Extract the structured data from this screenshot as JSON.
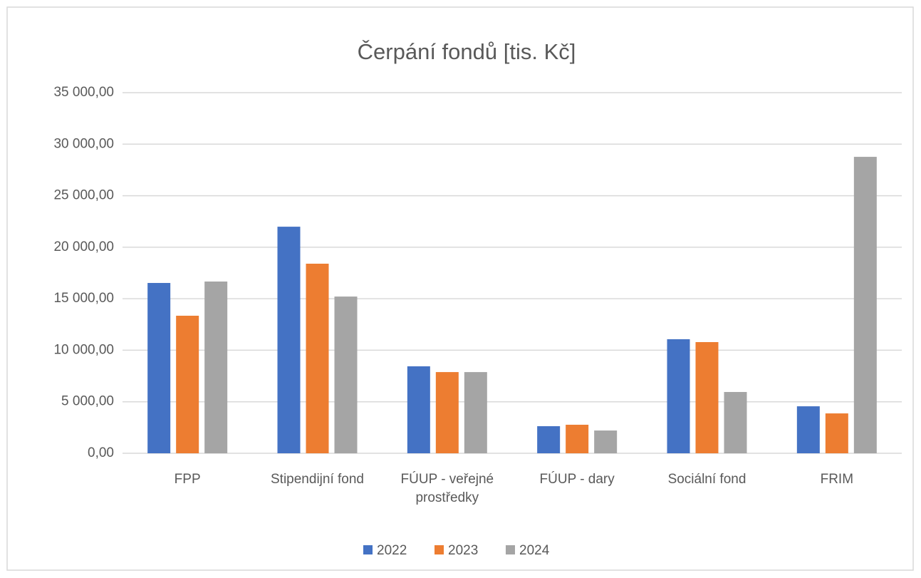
{
  "chart_data": {
    "type": "bar",
    "title": "Čerpání fondů [tis. Kč]",
    "categories": [
      "FPP",
      "Stipendijní fond",
      "FÚUP - veřejné prostředky",
      "FÚUP - dary",
      "Sociální fond",
      "FRIM"
    ],
    "series": [
      {
        "name": "2022",
        "color": "#4472c4",
        "values": [
          16530,
          21990,
          8440,
          2630,
          11070,
          4560
        ]
      },
      {
        "name": "2023",
        "color": "#ed7d31",
        "values": [
          13350,
          18400,
          7880,
          2770,
          10790,
          3870
        ]
      },
      {
        "name": "2024",
        "color": "#a5a5a5",
        "values": [
          16670,
          15210,
          7880,
          2210,
          5950,
          28770
        ]
      }
    ],
    "ylim": [
      0,
      35000
    ],
    "yticks": [
      {
        "value": 0,
        "label": "0,00"
      },
      {
        "value": 5000,
        "label": "5 000,00"
      },
      {
        "value": 10000,
        "label": "10 000,00"
      },
      {
        "value": 15000,
        "label": "15 000,00"
      },
      {
        "value": 20000,
        "label": "20 000,00"
      },
      {
        "value": 25000,
        "label": "25 000,00"
      },
      {
        "value": 30000,
        "label": "30 000,00"
      },
      {
        "value": 35000,
        "label": "35 000,00"
      }
    ],
    "grid": true,
    "legend": "bottom"
  }
}
